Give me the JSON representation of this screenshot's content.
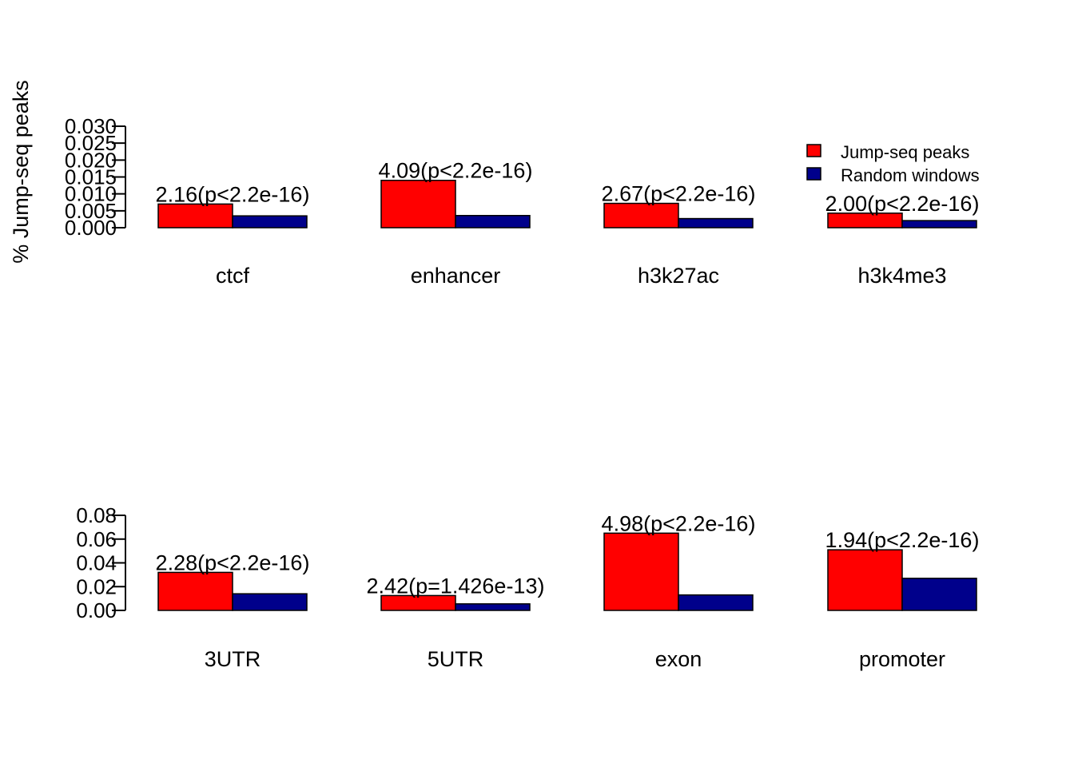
{
  "colors": {
    "jump": "#FF0000",
    "random": "#00008B"
  },
  "chart_data": [
    {
      "type": "bar",
      "ylabel": "% Jump-seq peaks",
      "ylim": [
        0,
        0.03
      ],
      "yticks": [
        "0.000",
        "0.005",
        "0.010",
        "0.015",
        "0.020",
        "0.025",
        "0.030"
      ],
      "grid": false,
      "legend_position": "top-right",
      "categories": [
        "ctcf",
        "enhancer",
        "h3k27ac",
        "h3k4me3"
      ],
      "series": [
        {
          "name": "Jump-seq peaks",
          "values": [
            0.007,
            0.014,
            0.0072,
            0.0043
          ]
        },
        {
          "name": "Random windows",
          "values": [
            0.0035,
            0.0036,
            0.0027,
            0.0021
          ]
        }
      ],
      "annotations": [
        "2.16(p<2.2e-16)",
        "4.09(p<2.2e-16)",
        "2.67(p<2.2e-16)",
        "2.00(p<2.2e-16)"
      ]
    },
    {
      "type": "bar",
      "ylim": [
        0,
        0.08
      ],
      "yticks": [
        "0.00",
        "0.02",
        "0.04",
        "0.06",
        "0.08"
      ],
      "grid": false,
      "categories": [
        "3UTR",
        "5UTR",
        "exon",
        "promoter"
      ],
      "series": [
        {
          "name": "Jump-seq peaks",
          "values": [
            0.032,
            0.0125,
            0.065,
            0.051
          ]
        },
        {
          "name": "Random windows",
          "values": [
            0.014,
            0.0055,
            0.013,
            0.027
          ]
        }
      ],
      "annotations": [
        "2.28(p<2.2e-16)",
        "2.42(p=1.426e-13)",
        "4.98(p<2.2e-16)",
        "1.94(p<2.2e-16)"
      ]
    }
  ]
}
